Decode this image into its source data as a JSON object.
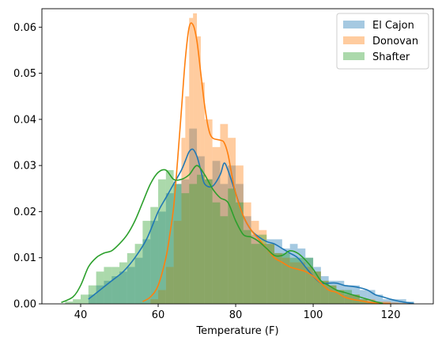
{
  "chart_data": {
    "type": "histogram",
    "title": "",
    "xlabel": "Temperature (F)",
    "ylabel": "",
    "xlim": [
      30,
      131
    ],
    "ylim": [
      0,
      0.064
    ],
    "x_ticks": [
      40,
      60,
      80,
      100,
      120
    ],
    "y_ticks": [
      0.0,
      0.01,
      0.02,
      0.03,
      0.04,
      0.05,
      0.06
    ],
    "y_tick_labels": [
      "0.00",
      "0.01",
      "0.02",
      "0.03",
      "0.04",
      "0.05",
      "0.06"
    ],
    "legend_placement": "top-right",
    "grid": false,
    "series": [
      {
        "name": "El Cajon",
        "color": "#1f77b4",
        "hist_bin_edges": [
          42,
          44,
          46,
          48,
          50,
          52,
          54,
          56,
          58,
          60,
          62,
          64,
          66,
          68,
          70,
          72,
          74,
          76,
          78,
          80,
          82,
          84,
          86,
          88,
          90,
          92,
          94,
          96,
          98,
          100,
          102,
          104,
          106,
          108,
          110,
          112,
          114,
          116,
          118,
          120,
          122,
          124,
          126
        ],
        "hist_values": [
          0.002,
          0.004,
          0.005,
          0.006,
          0.007,
          0.008,
          0.01,
          0.014,
          0.018,
          0.02,
          0.024,
          0.026,
          0.027,
          0.038,
          0.032,
          0.027,
          0.031,
          0.026,
          0.03,
          0.026,
          0.019,
          0.015,
          0.013,
          0.014,
          0.014,
          0.012,
          0.013,
          0.012,
          0.01,
          0.008,
          0.006,
          0.005,
          0.005,
          0.004,
          0.004,
          0.003,
          0.003,
          0.002,
          0.001,
          0.001,
          0.001,
          0.0005
        ],
        "kde_x": [
          42,
          45,
          48,
          51,
          54,
          57,
          60,
          62,
          64,
          66,
          67,
          68,
          69,
          70,
          71,
          72,
          74,
          76,
          77,
          78,
          80,
          82,
          84,
          86,
          88,
          90,
          92,
          94,
          96,
          98,
          100,
          102,
          104,
          106,
          108,
          110,
          112,
          114,
          116,
          118,
          120,
          122,
          124,
          126
        ],
        "kde_y": [
          0.001,
          0.003,
          0.005,
          0.007,
          0.01,
          0.014,
          0.02,
          0.023,
          0.026,
          0.029,
          0.031,
          0.033,
          0.0335,
          0.032,
          0.029,
          0.026,
          0.0255,
          0.028,
          0.0305,
          0.029,
          0.024,
          0.019,
          0.016,
          0.0145,
          0.0135,
          0.013,
          0.012,
          0.011,
          0.01,
          0.008,
          0.006,
          0.0045,
          0.0045,
          0.0045,
          0.004,
          0.0038,
          0.0035,
          0.003,
          0.002,
          0.0015,
          0.001,
          0.0006,
          0.0003,
          0.0001
        ]
      },
      {
        "name": "Donovan",
        "color": "#ff7f0e",
        "hist_bin_edges": [
          58,
          60,
          62,
          64,
          66,
          67,
          68,
          69,
          70,
          71,
          72,
          74,
          76,
          78,
          80,
          82,
          84,
          86,
          88,
          90,
          92,
          94,
          96,
          98,
          100,
          102,
          104,
          106,
          108,
          110,
          112,
          114,
          116,
          118,
          120,
          122,
          124
        ],
        "hist_values": [
          0.001,
          0.003,
          0.008,
          0.018,
          0.036,
          0.045,
          0.062,
          0.063,
          0.058,
          0.048,
          0.04,
          0.034,
          0.039,
          0.036,
          0.03,
          0.022,
          0.018,
          0.016,
          0.013,
          0.011,
          0.01,
          0.009,
          0.009,
          0.008,
          0.007,
          0.005,
          0.004,
          0.003,
          0.002,
          0.002,
          0.001,
          0.001,
          0.0005,
          0.0005,
          0.0003,
          0.0002
        ],
        "kde_x": [
          56,
          58,
          60,
          62,
          63,
          64,
          65,
          66,
          67,
          68,
          69,
          70,
          71,
          72,
          73,
          74,
          76,
          77,
          78,
          79,
          80,
          82,
          84,
          86,
          88,
          90,
          92,
          94,
          96,
          98,
          100,
          102,
          104,
          106,
          108,
          110,
          112,
          114,
          116,
          118,
          120
        ],
        "kde_y": [
          0.0005,
          0.0015,
          0.004,
          0.01,
          0.015,
          0.021,
          0.031,
          0.042,
          0.053,
          0.06,
          0.0605,
          0.057,
          0.05,
          0.043,
          0.038,
          0.036,
          0.0355,
          0.035,
          0.0325,
          0.028,
          0.024,
          0.019,
          0.016,
          0.014,
          0.012,
          0.01,
          0.009,
          0.008,
          0.0075,
          0.007,
          0.006,
          0.0045,
          0.003,
          0.0025,
          0.0015,
          0.001,
          0.0007,
          0.0004,
          0.0002,
          0.0001,
          5e-05
        ]
      },
      {
        "name": "Shafter",
        "color": "#2ca02c",
        "hist_bin_edges": [
          36,
          38,
          40,
          42,
          44,
          46,
          48,
          50,
          52,
          54,
          56,
          58,
          60,
          62,
          64,
          66,
          68,
          70,
          72,
          74,
          76,
          78,
          80,
          82,
          84,
          86,
          88,
          90,
          92,
          94,
          96,
          98,
          100,
          102,
          104,
          106,
          108,
          110,
          112,
          114,
          116
        ],
        "hist_values": [
          0.0005,
          0.001,
          0.002,
          0.004,
          0.007,
          0.008,
          0.008,
          0.009,
          0.011,
          0.013,
          0.018,
          0.021,
          0.027,
          0.029,
          0.026,
          0.024,
          0.026,
          0.028,
          0.027,
          0.022,
          0.019,
          0.025,
          0.022,
          0.016,
          0.013,
          0.015,
          0.013,
          0.011,
          0.011,
          0.01,
          0.01,
          0.01,
          0.007,
          0.005,
          0.004,
          0.003,
          0.003,
          0.002,
          0.001,
          0.0005
        ],
        "kde_x": [
          35,
          38,
          40,
          42,
          44,
          46,
          48,
          50,
          52,
          54,
          56,
          58,
          60,
          62,
          64,
          66,
          68,
          70,
          72,
          74,
          76,
          78,
          80,
          82,
          84,
          86,
          88,
          90,
          92,
          94,
          96,
          98,
          100,
          102,
          104,
          106,
          108,
          110,
          112,
          114,
          116,
          118
        ],
        "kde_y": [
          0.0003,
          0.0015,
          0.004,
          0.008,
          0.01,
          0.011,
          0.0115,
          0.013,
          0.015,
          0.018,
          0.022,
          0.026,
          0.0285,
          0.029,
          0.027,
          0.027,
          0.028,
          0.03,
          0.028,
          0.025,
          0.023,
          0.022,
          0.018,
          0.015,
          0.0145,
          0.0135,
          0.012,
          0.0105,
          0.0105,
          0.0115,
          0.011,
          0.0095,
          0.0075,
          0.005,
          0.004,
          0.003,
          0.0025,
          0.002,
          0.0015,
          0.001,
          0.0005,
          0.0001
        ]
      }
    ]
  }
}
